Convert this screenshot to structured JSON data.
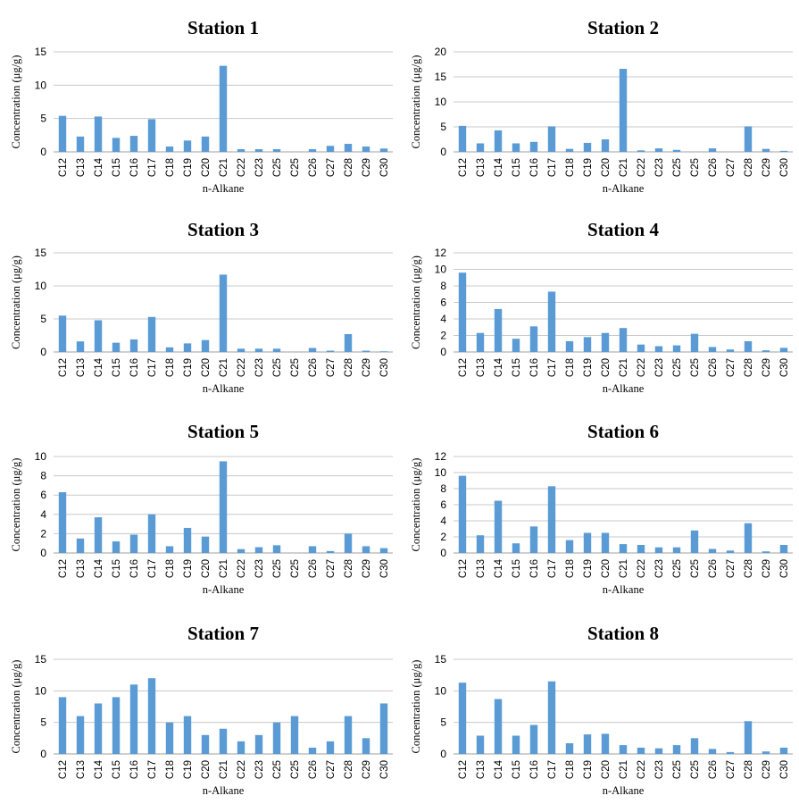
{
  "chart_data": [
    {
      "type": "bar",
      "title": "Station 1",
      "xlabel": "n-Alkane",
      "ylabel": "Concentration (μg/g)",
      "ylim": [
        0,
        15
      ],
      "yticks": [
        0,
        5,
        10,
        15
      ],
      "grid": true,
      "bar_color": "#5b9bd5",
      "categories": [
        "C12",
        "C13",
        "C14",
        "C15",
        "C16",
        "C17",
        "C18",
        "C19",
        "C20",
        "C21",
        "C22",
        "C23",
        "C25",
        "C25",
        "C26",
        "C27",
        "C28",
        "C29",
        "C30"
      ],
      "values": [
        5.4,
        2.3,
        5.3,
        2.1,
        2.4,
        4.9,
        0.8,
        1.7,
        2.3,
        12.9,
        0.4,
        0.4,
        0.4,
        0.0,
        0.4,
        0.9,
        1.2,
        0.8,
        0.5
      ]
    },
    {
      "type": "bar",
      "title": "Station 2",
      "xlabel": "n-Alkane",
      "ylabel": "Concentration (μg/g)",
      "ylim": [
        0,
        20
      ],
      "yticks": [
        0,
        5,
        10,
        15,
        20
      ],
      "grid": true,
      "bar_color": "#5b9bd5",
      "categories": [
        "C12",
        "C13",
        "C14",
        "C15",
        "C16",
        "C17",
        "C18",
        "C19",
        "C20",
        "C21",
        "C22",
        "C23",
        "C25",
        "C25",
        "C26",
        "C27",
        "C28",
        "C29",
        "C30"
      ],
      "values": [
        5.2,
        1.7,
        4.3,
        1.7,
        2.0,
        5.1,
        0.6,
        1.8,
        2.5,
        16.6,
        0.3,
        0.7,
        0.4,
        0.0,
        0.7,
        0.0,
        5.1,
        0.6,
        0.2
      ]
    },
    {
      "type": "bar",
      "title": "Station 3",
      "xlabel": "n-Alkane",
      "ylabel": "Concentration (μg/g)",
      "ylim": [
        0,
        15
      ],
      "yticks": [
        0,
        5,
        10,
        15
      ],
      "grid": true,
      "bar_color": "#5b9bd5",
      "categories": [
        "C12",
        "C13",
        "C14",
        "C15",
        "C16",
        "C17",
        "C18",
        "C19",
        "C20",
        "C21",
        "C22",
        "C23",
        "C25",
        "C25",
        "C26",
        "C27",
        "C28",
        "C29",
        "C30"
      ],
      "values": [
        5.5,
        1.6,
        4.8,
        1.4,
        1.9,
        5.3,
        0.7,
        1.3,
        1.8,
        11.7,
        0.5,
        0.5,
        0.5,
        0.0,
        0.6,
        0.2,
        2.7,
        0.2,
        0.1
      ]
    },
    {
      "type": "bar",
      "title": "Station 4",
      "xlabel": "n-Alkane",
      "ylabel": "Concentration (μg/g)",
      "ylim": [
        0,
        12
      ],
      "yticks": [
        0,
        2,
        4,
        6,
        8,
        10,
        12
      ],
      "grid": true,
      "bar_color": "#5b9bd5",
      "categories": [
        "C12",
        "C13",
        "C14",
        "C15",
        "C16",
        "C17",
        "C18",
        "C19",
        "C20",
        "C21",
        "C22",
        "C23",
        "C25",
        "C25",
        "C26",
        "C27",
        "C28",
        "C29",
        "C30"
      ],
      "values": [
        9.6,
        2.3,
        5.2,
        1.6,
        3.1,
        7.3,
        1.3,
        1.8,
        2.3,
        2.9,
        0.9,
        0.7,
        0.8,
        2.2,
        0.6,
        0.3,
        1.3,
        0.2,
        0.5
      ]
    },
    {
      "type": "bar",
      "title": "Station 5",
      "xlabel": "n-Alkane",
      "ylabel": "Concentration (μg/g)",
      "ylim": [
        0,
        10
      ],
      "yticks": [
        0,
        2,
        4,
        6,
        8,
        10
      ],
      "grid": true,
      "bar_color": "#5b9bd5",
      "categories": [
        "C12",
        "C13",
        "C14",
        "C15",
        "C16",
        "C17",
        "C18",
        "C19",
        "C20",
        "C21",
        "C22",
        "C23",
        "C25",
        "C25",
        "C26",
        "C27",
        "C28",
        "C29",
        "C30"
      ],
      "values": [
        6.3,
        1.5,
        3.7,
        1.2,
        1.9,
        4.0,
        0.7,
        2.6,
        1.7,
        9.5,
        0.4,
        0.6,
        0.8,
        0.0,
        0.7,
        0.2,
        2.0,
        0.7,
        0.5
      ]
    },
    {
      "type": "bar",
      "title": "Station 6",
      "xlabel": "n-Alkane",
      "ylabel": "Concentration (μg/g)",
      "ylim": [
        0,
        12
      ],
      "yticks": [
        0,
        2,
        4,
        6,
        8,
        10,
        12
      ],
      "grid": true,
      "bar_color": "#5b9bd5",
      "categories": [
        "C12",
        "C13",
        "C14",
        "C15",
        "C16",
        "C17",
        "C18",
        "C19",
        "C20",
        "C21",
        "C22",
        "C23",
        "C25",
        "C25",
        "C26",
        "C27",
        "C28",
        "C29",
        "C30"
      ],
      "values": [
        9.6,
        2.2,
        6.5,
        1.2,
        3.3,
        8.3,
        1.6,
        2.5,
        2.5,
        1.1,
        1.0,
        0.7,
        0.7,
        2.8,
        0.5,
        0.3,
        3.7,
        0.2,
        1.0
      ]
    },
    {
      "type": "bar",
      "title": "Station 7",
      "xlabel": "n-Alkane",
      "ylabel": "Concentration (μg/g)",
      "ylim": [
        0,
        15
      ],
      "yticks": [
        0,
        5,
        10,
        15
      ],
      "grid": true,
      "bar_color": "#5b9bd5",
      "categories": [
        "C12",
        "C13",
        "C14",
        "C15",
        "C16",
        "C17",
        "C18",
        "C19",
        "C20",
        "C21",
        "C22",
        "C23",
        "C25",
        "C25",
        "C26",
        "C27",
        "C28",
        "C29",
        "C30"
      ],
      "values": [
        9.0,
        6.0,
        8.0,
        9.0,
        11.0,
        12.0,
        5.0,
        6.0,
        3.0,
        4.0,
        2.0,
        3.0,
        5.0,
        6.0,
        1.0,
        2.0,
        6.0,
        2.5,
        8.0
      ]
    },
    {
      "type": "bar",
      "title": "Station 8",
      "xlabel": "n-Alkane",
      "ylabel": "Concentration (μg/g)",
      "ylim": [
        0,
        15
      ],
      "yticks": [
        0,
        5,
        10,
        15
      ],
      "grid": true,
      "bar_color": "#5b9bd5",
      "categories": [
        "C12",
        "C13",
        "C14",
        "C15",
        "C16",
        "C17",
        "C18",
        "C19",
        "C20",
        "C21",
        "C22",
        "C23",
        "C25",
        "C25",
        "C26",
        "C27",
        "C28",
        "C29",
        "C30"
      ],
      "values": [
        11.3,
        2.9,
        8.7,
        2.9,
        4.6,
        11.5,
        1.7,
        3.1,
        3.2,
        1.4,
        1.0,
        0.9,
        1.4,
        2.5,
        0.8,
        0.3,
        5.2,
        0.4,
        1.0
      ]
    }
  ]
}
